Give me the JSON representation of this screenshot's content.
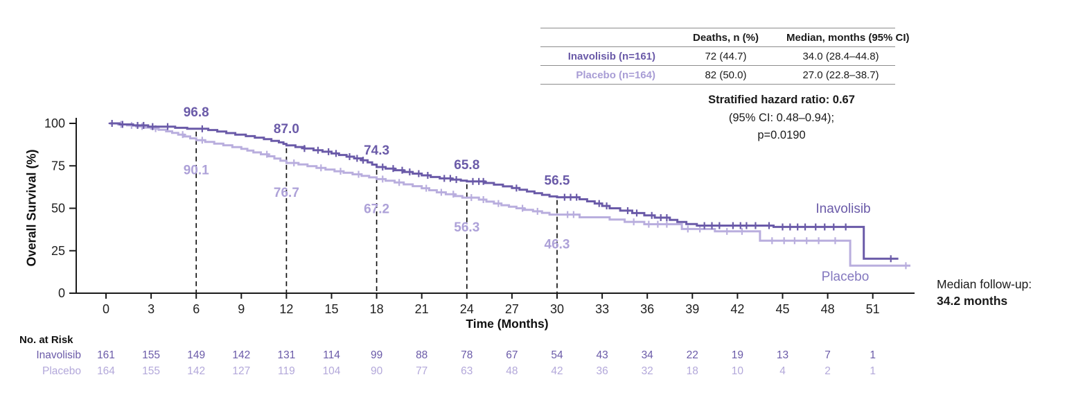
{
  "colors": {
    "inavolisib": "#6a5aa8",
    "placebo_curve": "#b9aede",
    "placebo_annotation": "#ada1d8",
    "placebo_curve_label": "#8478bf",
    "placebo_table_label": "#a89dd5",
    "risk_inavolisib": "#6a5aa8",
    "risk_placebo": "#b3a8da",
    "axis": "#1a1a1a",
    "table_rule": "#8c8c8c",
    "landmark_line": "#111111"
  },
  "summary_table": {
    "col_headers": [
      "Deaths, n (%)",
      "Median, months (95% CI)"
    ],
    "rows": [
      {
        "label": "Inavolisib (n=161)",
        "deaths": "72 (44.7)",
        "median": "34.0 (28.4–44.8)"
      },
      {
        "label": "Placebo (n=164)",
        "deaths": "82 (50.0)",
        "median": "27.0 (22.8–38.7)"
      }
    ]
  },
  "hazard_ratio": {
    "line1": "Stratified hazard ratio: 0.67",
    "line2": "(95% CI: 0.48–0.94);",
    "line3": "p=0.0190"
  },
  "median_followup": {
    "label": "Median follow-up:",
    "value": "34.2 months"
  },
  "curve_labels": {
    "inavolisib": "Inavolisib",
    "placebo": "Placebo"
  },
  "risk_table": {
    "title": "No. at Risk",
    "time_points": [
      0,
      3,
      6,
      9,
      12,
      15,
      18,
      21,
      24,
      27,
      30,
      33,
      36,
      39,
      42,
      45,
      48,
      51
    ],
    "rows": [
      {
        "label": "Inavolisib",
        "values": [
          161,
          155,
          149,
          142,
          131,
          114,
          99,
          88,
          78,
          67,
          54,
          43,
          34,
          22,
          19,
          13,
          7,
          1
        ]
      },
      {
        "label": "Placebo",
        "values": [
          164,
          155,
          142,
          127,
          119,
          104,
          90,
          77,
          63,
          48,
          42,
          36,
          32,
          18,
          10,
          4,
          2,
          1
        ]
      }
    ]
  },
  "chart_data": {
    "type": "line",
    "subtype": "kaplan-meier-step",
    "title": "",
    "xlabel": "Time (Months)",
    "ylabel": "Overall Survival (%)",
    "xlim": [
      0,
      54
    ],
    "ylim": [
      0,
      100
    ],
    "x_ticks": [
      0,
      3,
      6,
      9,
      12,
      15,
      18,
      21,
      24,
      27,
      30,
      33,
      36,
      39,
      42,
      45,
      48,
      51
    ],
    "y_ticks": [
      0,
      25,
      50,
      75,
      100
    ],
    "grid": false,
    "legend_position": "inline-right",
    "landmark_lines": [
      {
        "t": 6,
        "inavolisib": 96.8,
        "placebo": 90.1,
        "inavolisib_label": "96.8",
        "placebo_label": "90.1"
      },
      {
        "t": 12,
        "inavolisib": 87.0,
        "placebo": 76.7,
        "inavolisib_label": "87.0",
        "placebo_label": "76.7"
      },
      {
        "t": 18,
        "inavolisib": 74.3,
        "placebo": 67.2,
        "inavolisib_label": "74.3",
        "placebo_label": "67.2"
      },
      {
        "t": 24,
        "inavolisib": 65.8,
        "placebo": 56.3,
        "inavolisib_label": "65.8",
        "placebo_label": "56.3"
      },
      {
        "t": 30,
        "inavolisib": 56.5,
        "placebo": 46.3,
        "inavolisib_label": "56.5",
        "placebo_label": "46.3"
      }
    ],
    "series": [
      {
        "name": "Inavolisib",
        "color": "#6a5aa8",
        "end_time": 52.7,
        "steps": [
          [
            0.25,
            100
          ],
          [
            0.9,
            99.4
          ],
          [
            1.8,
            98.8
          ],
          [
            2.8,
            98.1
          ],
          [
            4.6,
            97.4
          ],
          [
            5.4,
            96.8
          ],
          [
            6.8,
            96.1
          ],
          [
            7.4,
            95.2
          ],
          [
            8.0,
            94.3
          ],
          [
            8.6,
            93.4
          ],
          [
            9.3,
            92.5
          ],
          [
            9.9,
            91.6
          ],
          [
            10.5,
            90.7
          ],
          [
            11.0,
            89.7
          ],
          [
            11.5,
            88.8
          ],
          [
            11.8,
            87.9
          ],
          [
            12.0,
            87.0
          ],
          [
            12.6,
            86.1
          ],
          [
            13.2,
            85.2
          ],
          [
            13.8,
            84.2
          ],
          [
            14.4,
            83.3
          ],
          [
            15.0,
            82.3
          ],
          [
            15.5,
            81.4
          ],
          [
            16.0,
            80.4
          ],
          [
            16.5,
            79.4
          ],
          [
            17.0,
            78.3
          ],
          [
            17.4,
            77.0
          ],
          [
            17.7,
            75.7
          ],
          [
            18.0,
            74.3
          ],
          [
            18.6,
            73.4
          ],
          [
            19.2,
            72.4
          ],
          [
            19.8,
            71.4
          ],
          [
            20.4,
            70.4
          ],
          [
            21.0,
            69.4
          ],
          [
            21.6,
            68.4
          ],
          [
            22.2,
            67.6
          ],
          [
            23.0,
            66.9
          ],
          [
            23.6,
            66.3
          ],
          [
            24.0,
            65.8
          ],
          [
            25.2,
            64.9
          ],
          [
            25.8,
            63.9
          ],
          [
            26.4,
            62.9
          ],
          [
            27.0,
            61.9
          ],
          [
            27.5,
            60.9
          ],
          [
            28.0,
            59.9
          ],
          [
            28.5,
            58.9
          ],
          [
            29.0,
            57.9
          ],
          [
            29.5,
            57.0
          ],
          [
            30.0,
            56.5
          ],
          [
            31.5,
            55.3
          ],
          [
            32.0,
            54.1
          ],
          [
            32.5,
            52.8
          ],
          [
            33.0,
            51.4
          ],
          [
            33.5,
            50.0
          ],
          [
            34.2,
            48.6
          ],
          [
            35.0,
            47.2
          ],
          [
            35.8,
            45.8
          ],
          [
            36.5,
            44.5
          ],
          [
            37.5,
            43.2
          ],
          [
            38.0,
            41.9
          ],
          [
            38.6,
            40.7
          ],
          [
            39.3,
            39.8
          ],
          [
            44.4,
            39.0
          ],
          [
            50.4,
            20.3
          ]
        ],
        "censor_times": [
          0.4,
          1.1,
          2.1,
          2.5,
          3.1,
          4.1,
          6.4,
          13.2,
          14.1,
          14.8,
          15.3,
          16.2,
          16.7,
          17.1,
          18.4,
          19.1,
          19.7,
          20.2,
          20.8,
          21.4,
          22.5,
          22.9,
          23.3,
          24.4,
          24.8,
          25.1,
          27.3,
          30.5,
          30.9,
          31.3,
          32.8,
          33.3,
          34.7,
          35.3,
          36.3,
          36.9,
          37.3,
          39.8,
          40.3,
          40.8,
          41.7,
          42.2,
          42.6,
          43.2,
          44.1,
          45.0,
          45.5,
          46.0,
          46.5,
          47.2,
          47.8,
          48.4,
          49.2,
          52.2
        ]
      },
      {
        "name": "Placebo",
        "color": "#b9aede",
        "end_time": 53.5,
        "steps": [
          [
            0.25,
            100
          ],
          [
            0.8,
            99.4
          ],
          [
            1.4,
            98.8
          ],
          [
            2.0,
            98.2
          ],
          [
            2.5,
            97.5
          ],
          [
            3.0,
            96.9
          ],
          [
            3.5,
            96.2
          ],
          [
            4.0,
            95.3
          ],
          [
            4.4,
            94.4
          ],
          [
            4.8,
            93.4
          ],
          [
            5.2,
            92.3
          ],
          [
            5.6,
            91.2
          ],
          [
            6.0,
            90.1
          ],
          [
            6.6,
            89.1
          ],
          [
            7.2,
            88.1
          ],
          [
            7.8,
            87.1
          ],
          [
            8.4,
            86.0
          ],
          [
            9.0,
            85.0
          ],
          [
            9.4,
            84.0
          ],
          [
            9.8,
            82.9
          ],
          [
            10.3,
            81.8
          ],
          [
            10.8,
            80.6
          ],
          [
            11.2,
            79.3
          ],
          [
            11.6,
            78.0
          ],
          [
            12.0,
            76.7
          ],
          [
            12.8,
            75.8
          ],
          [
            13.4,
            74.8
          ],
          [
            14.0,
            73.8
          ],
          [
            14.6,
            72.8
          ],
          [
            15.2,
            71.8
          ],
          [
            15.8,
            70.9
          ],
          [
            16.4,
            70.0
          ],
          [
            17.0,
            69.1
          ],
          [
            17.5,
            68.2
          ],
          [
            18.0,
            67.2
          ],
          [
            18.6,
            66.2
          ],
          [
            19.2,
            65.2
          ],
          [
            19.8,
            64.1
          ],
          [
            20.4,
            63.0
          ],
          [
            21.0,
            61.8
          ],
          [
            21.5,
            60.6
          ],
          [
            22.0,
            59.4
          ],
          [
            22.6,
            58.3
          ],
          [
            23.2,
            57.2
          ],
          [
            23.7,
            56.3
          ],
          [
            24.8,
            55.1
          ],
          [
            25.3,
            53.9
          ],
          [
            25.8,
            52.8
          ],
          [
            26.3,
            51.8
          ],
          [
            26.8,
            50.9
          ],
          [
            27.3,
            50.0
          ],
          [
            27.8,
            49.1
          ],
          [
            28.4,
            48.2
          ],
          [
            29.0,
            47.3
          ],
          [
            29.5,
            46.3
          ],
          [
            31.5,
            44.7
          ],
          [
            33.5,
            43.4
          ],
          [
            34.5,
            42.0
          ],
          [
            35.8,
            40.6
          ],
          [
            38.3,
            37.8
          ],
          [
            40.5,
            36.4
          ],
          [
            43.5,
            30.9
          ],
          [
            49.5,
            16.2
          ]
        ],
        "censor_times": [
          1.0,
          1.7,
          2.4,
          3.3,
          5.1,
          6.4,
          10.7,
          12.5,
          14.3,
          15.6,
          16.8,
          18.4,
          19.5,
          21.3,
          22.3,
          23.1,
          24.3,
          25.1,
          26.1,
          27.7,
          28.7,
          30.7,
          31.1,
          35.1,
          36.1,
          36.7,
          37.3,
          38.7,
          39.5,
          41.3,
          42.3,
          44.3,
          45.1,
          45.8,
          46.6,
          47.4,
          48.5,
          53.2
        ]
      }
    ]
  }
}
